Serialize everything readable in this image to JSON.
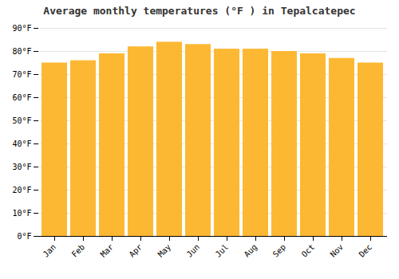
{
  "chart_data": {
    "type": "bar",
    "title": "Average monthly temperatures (°F ) in Tepalcatepec",
    "categories": [
      "Jan",
      "Feb",
      "Mar",
      "Apr",
      "May",
      "Jun",
      "Jul",
      "Aug",
      "Sep",
      "Oct",
      "Nov",
      "Dec"
    ],
    "values": [
      75,
      76,
      79,
      82,
      84,
      83,
      81,
      81,
      80,
      79,
      77,
      75
    ],
    "color": "#FDB833",
    "ylim": [
      0,
      90
    ],
    "yticks": [
      {
        "value": 0,
        "label": "0°F"
      },
      {
        "value": 10,
        "label": "10°F"
      },
      {
        "value": 20,
        "label": "20°F"
      },
      {
        "value": 30,
        "label": "30°F"
      },
      {
        "value": 40,
        "label": "40°F"
      },
      {
        "value": 50,
        "label": "50°F"
      },
      {
        "value": 60,
        "label": "60°F"
      },
      {
        "value": 70,
        "label": "70°F"
      },
      {
        "value": 80,
        "label": "80°F"
      },
      {
        "value": 90,
        "label": "90°F"
      }
    ],
    "grid": true
  }
}
